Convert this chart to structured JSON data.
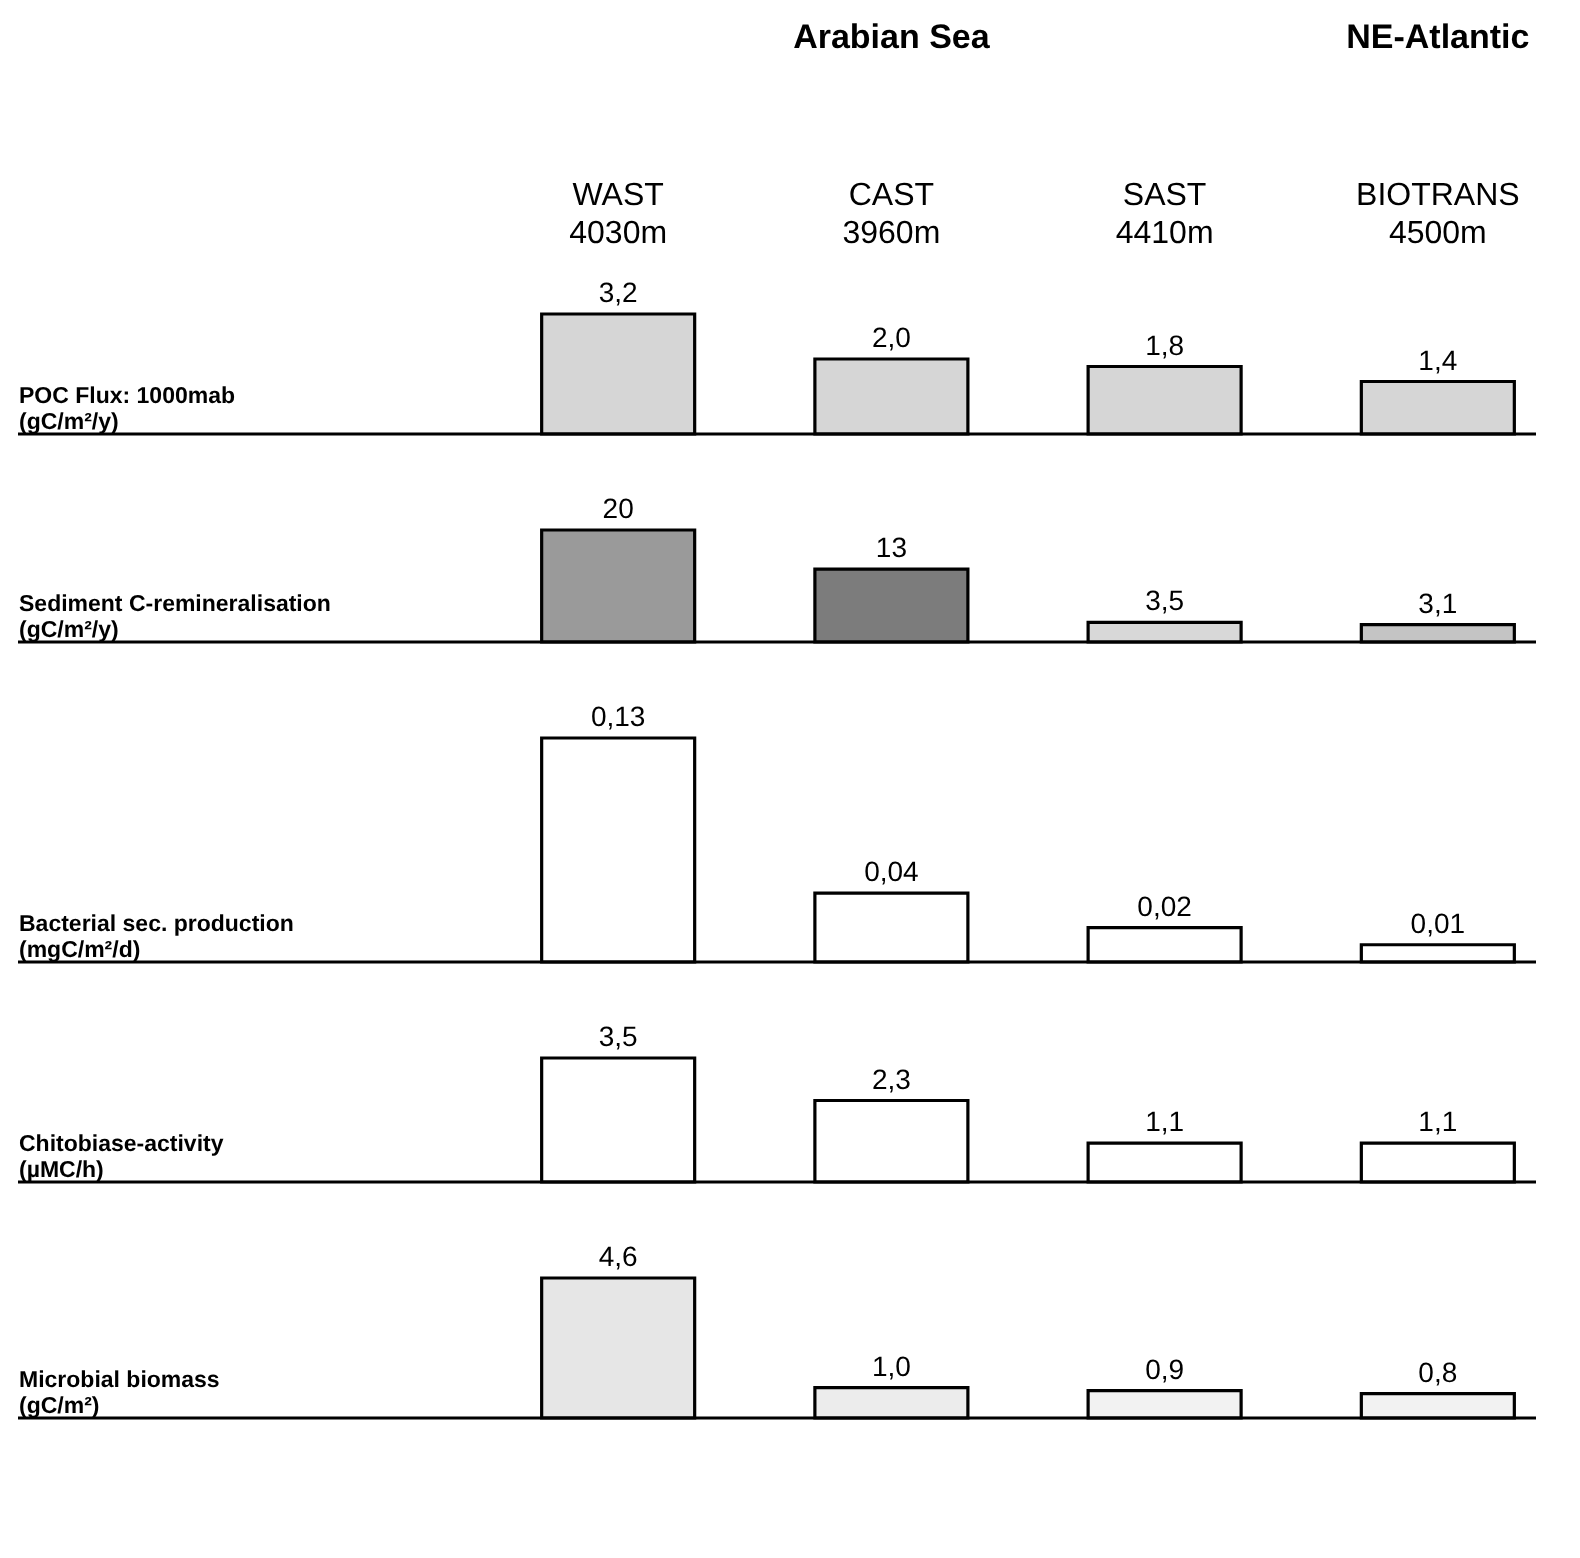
{
  "chart_data": [
    {
      "type": "bar",
      "ylabel": "POC Flux: 1000mab\n(gC/m²/y)",
      "categories": [
        "WAST\n4030m",
        "CAST\n3960m",
        "SAST\n4410m",
        "BIOTRANS\n4500m"
      ],
      "values": [
        3.2,
        2.0,
        1.8,
        1.4
      ],
      "value_labels": [
        "3,2",
        "2,0",
        "1,8",
        "1,4"
      ],
      "colors": [
        "#d6d6d6",
        "#d6d6d6",
        "#d6d6d6",
        "#d6d6d6"
      ],
      "tick_labels": "x",
      "annotations": [
        "Arabian Sea",
        "NE-Atlantic"
      ]
    },
    {
      "type": "bar",
      "ylabel": "Sediment C-remineralisation\n(gC/m²/y)",
      "categories": [
        null,
        null,
        null,
        null
      ],
      "values": [
        20,
        13,
        3.5,
        3.1
      ],
      "value_labels": [
        "20",
        "13",
        "3,5",
        "3,1"
      ],
      "colors": [
        "#9a9a9a",
        "#7c7c7c",
        "#d8d8d8",
        "#c4c4c4"
      ],
      "tick_labels": false
    },
    {
      "type": "bar",
      "ylabel": "Bacterial sec. production\n(mgC/m²/d)",
      "categories": [
        null,
        null,
        null,
        null
      ],
      "values": [
        0.13,
        0.04,
        0.02,
        0.01
      ],
      "value_labels": [
        "0,13",
        "0,04",
        "0,02",
        "0,01"
      ],
      "colors": [
        "#ffffff",
        "#ffffff",
        "#ffffff",
        "#ffffff"
      ],
      "tick_labels": false
    },
    {
      "type": "bar",
      "ylabel": "Chitobiase-activity\n(µMC/h)",
      "categories": [
        null,
        null,
        null,
        null
      ],
      "values": [
        3.5,
        2.3,
        1.1,
        1.1
      ],
      "value_labels": [
        "3,5",
        "2,3",
        "1,1",
        "1,1"
      ],
      "colors": [
        "#ffffff",
        "#ffffff",
        "#ffffff",
        "#ffffff"
      ],
      "tick_labels": false
    },
    {
      "type": "bar",
      "ylabel": "Microbial biomass\n(gC/m²)",
      "categories": [
        null,
        null,
        null,
        null
      ],
      "values": [
        4.6,
        1.0,
        0.9,
        0.8
      ],
      "value_labels": [
        "4,6",
        "1,0",
        "0,9",
        "0,8"
      ],
      "colors": [
        "#e6e6e6",
        "#ececec",
        "#f2f2f2",
        "#f2f2f2"
      ],
      "tick_labels": false
    }
  ]
}
